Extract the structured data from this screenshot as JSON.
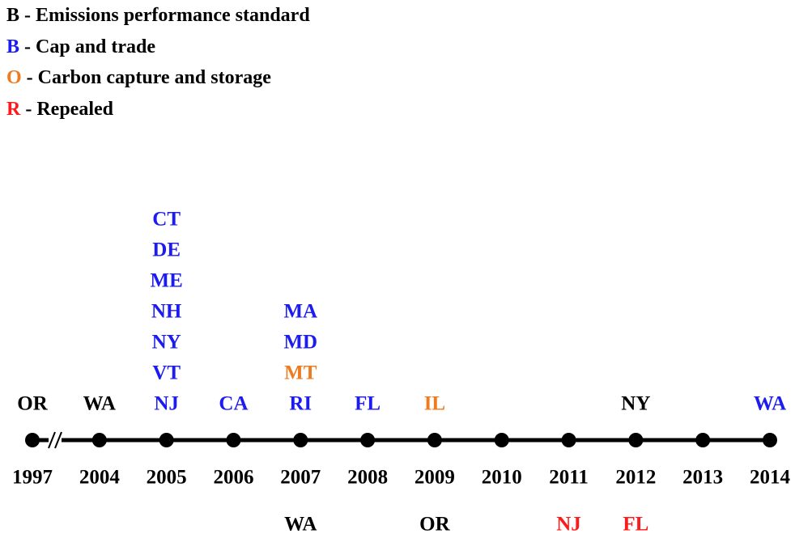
{
  "legend": [
    {
      "code": "B",
      "text": "- Emissions performance standard",
      "color": "#000000"
    },
    {
      "code": "B",
      "text": "- Cap and trade",
      "color": "#1c1cf0"
    },
    {
      "code": "O",
      "text": "- Carbon capture and storage",
      "color": "#f07a1e"
    },
    {
      "code": "R",
      "text": "- Repealed",
      "color": "#ff1a1a"
    }
  ],
  "timeline": {
    "points": [
      {
        "year": "1997",
        "above": [
          {
            "label": "OR",
            "color": "#000000"
          }
        ],
        "below": []
      },
      {
        "year": "2004",
        "above": [
          {
            "label": "WA",
            "color": "#000000"
          }
        ],
        "below": []
      },
      {
        "year": "2005",
        "above": [
          {
            "label": "CT",
            "color": "#1c1cf0"
          },
          {
            "label": "DE",
            "color": "#1c1cf0"
          },
          {
            "label": "ME",
            "color": "#1c1cf0"
          },
          {
            "label": "NH",
            "color": "#1c1cf0"
          },
          {
            "label": "NY",
            "color": "#1c1cf0"
          },
          {
            "label": "VT",
            "color": "#1c1cf0"
          },
          {
            "label": "NJ",
            "color": "#1c1cf0"
          }
        ],
        "below": []
      },
      {
        "year": "2006",
        "above": [
          {
            "label": "CA",
            "color": "#1c1cf0"
          }
        ],
        "below": []
      },
      {
        "year": "2007",
        "above": [
          {
            "label": "MA",
            "color": "#1c1cf0"
          },
          {
            "label": "MD",
            "color": "#1c1cf0"
          },
          {
            "label": "MT",
            "color": "#f07a1e"
          },
          {
            "label": "RI",
            "color": "#1c1cf0"
          }
        ],
        "below": [
          {
            "label": "WA",
            "color": "#000000"
          }
        ]
      },
      {
        "year": "2008",
        "above": [
          {
            "label": "FL",
            "color": "#1c1cf0"
          }
        ],
        "below": []
      },
      {
        "year": "2009",
        "above": [
          {
            "label": "IL",
            "color": "#f07a1e"
          }
        ],
        "below": [
          {
            "label": "OR",
            "color": "#000000"
          }
        ]
      },
      {
        "year": "2010",
        "above": [],
        "below": []
      },
      {
        "year": "2011",
        "above": [],
        "below": [
          {
            "label": "NJ",
            "color": "#ff1a1a"
          }
        ]
      },
      {
        "year": "2012",
        "above": [
          {
            "label": "NY",
            "color": "#000000"
          }
        ],
        "below": [
          {
            "label": "FL",
            "color": "#ff1a1a"
          }
        ]
      },
      {
        "year": "2013",
        "above": [],
        "below": []
      },
      {
        "year": "2014",
        "above": [
          {
            "label": "WA",
            "color": "#1c1cf0"
          }
        ],
        "below": []
      }
    ]
  }
}
